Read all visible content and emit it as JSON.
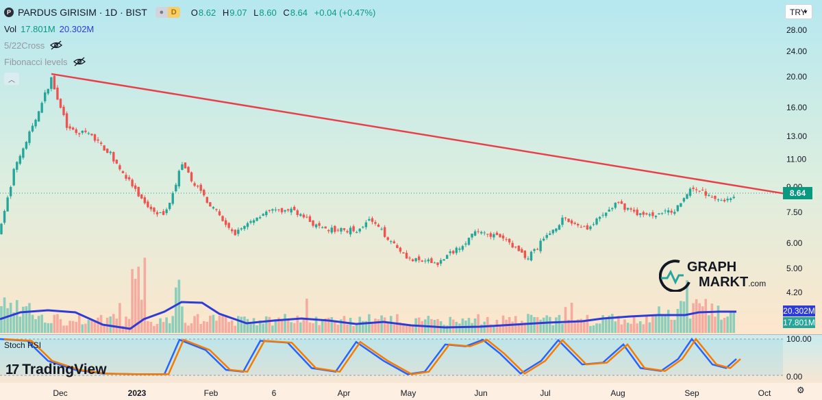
{
  "header": {
    "logo_letter": "P",
    "symbol": "PARDUS GIRISIM · 1D · BIST",
    "badge_a": "",
    "badge_d": "D",
    "ohlc": {
      "o_label": "O",
      "o": "8.62",
      "h_label": "H",
      "h": "9.07",
      "l_label": "L",
      "l": "8.60",
      "c_label": "C",
      "c": "8.64",
      "change": "+0.04 (+0.47%)"
    },
    "vol": {
      "label": "Vol",
      "value": "17.801M",
      "ma": "20.302M"
    },
    "indicators": [
      "5/22Cross",
      "Fibonacci levels"
    ],
    "currency": "TRY"
  },
  "price_axis": {
    "ticks": [
      "28.00",
      "24.00",
      "20.00",
      "16.00",
      "13.00",
      "11.00",
      "9.00",
      "7.50",
      "6.00",
      "5.00",
      "4.20"
    ],
    "last_price_tag": "8.64",
    "vol_ma_tag": "20.302M",
    "vol_tag": "17.801M"
  },
  "rsi": {
    "label": "Stoch RSI",
    "ticks": [
      "100.00",
      "0.00"
    ]
  },
  "time_axis": {
    "labels": [
      "Dec",
      "2023",
      "Feb",
      "6",
      "Apr",
      "May",
      "Jun",
      "Jul",
      "Aug",
      "Sep",
      "Oct"
    ]
  },
  "watermarks": {
    "tradingview": "TradingView",
    "graphmarkt_top": "GRAPH",
    "graphmarkt_bottom": "MARKT",
    "graphmarkt_domain": ".com"
  },
  "colors": {
    "up": "#26a69a",
    "down": "#ef5350",
    "trendline": "#e8404a",
    "vol_ma": "#2f3bd6",
    "k_line": "#2962ff",
    "d_line": "#f57c00",
    "bg_top": "#b6e8f0",
    "bg_bottom": "#fde6cc"
  },
  "chart_data": {
    "type": "candlestick",
    "price_scale": "log",
    "ylim": [
      4.2,
      28.0
    ],
    "last_close": 8.64,
    "trendline": {
      "from": {
        "month": "Nov",
        "price": 20.4
      },
      "to": {
        "month": "Oct",
        "price": 8.6
      }
    },
    "monthly_path_close": [
      {
        "month": "Nov",
        "close": 6.5
      },
      {
        "month": "late Nov",
        "close": 19.8
      },
      {
        "month": "Dec",
        "close": 13.5
      },
      {
        "month": "2023",
        "close": 8.0
      },
      {
        "month": "mid Jan",
        "close": 10.5
      },
      {
        "month": "Feb",
        "close": 7.6
      },
      {
        "month": "6",
        "close": 7.2
      },
      {
        "month": "Apr",
        "close": 6.3
      },
      {
        "month": "May",
        "close": 5.1
      },
      {
        "month": "Jun",
        "close": 6.2
      },
      {
        "month": "Jul",
        "close": 7.2
      },
      {
        "month": "Aug",
        "close": 7.3
      },
      {
        "month": "Sep",
        "close": 8.4
      },
      {
        "month": "end",
        "close": 8.64
      }
    ],
    "volume_ma": 20.302,
    "volume_last": 17.801,
    "stoch_rsi_ylim": [
      0,
      100
    ]
  }
}
